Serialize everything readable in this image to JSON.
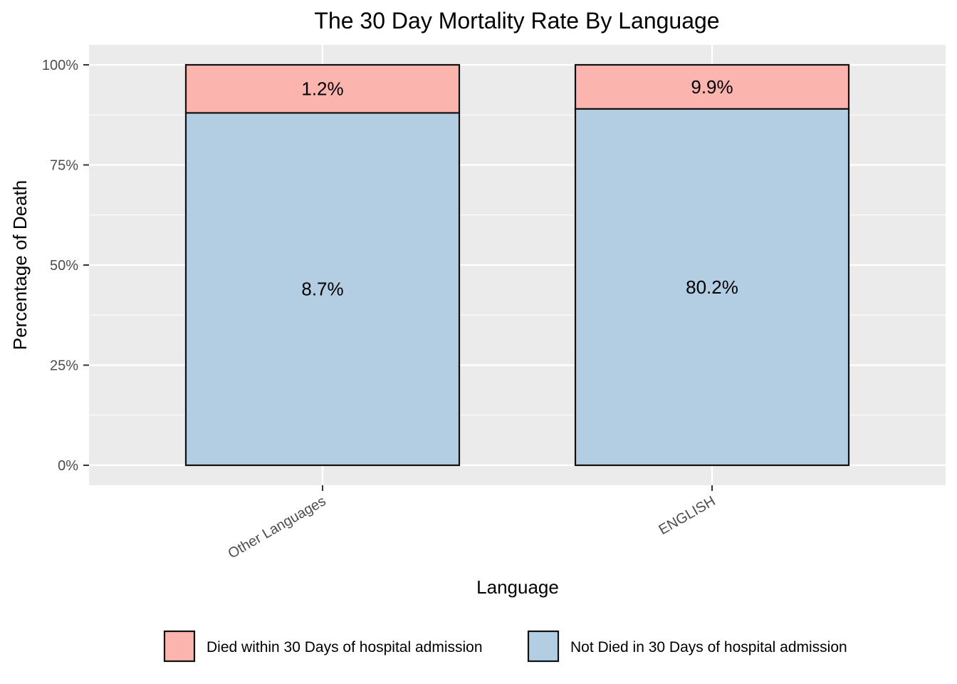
{
  "chart_data": {
    "type": "bar",
    "stacked": true,
    "title": "The 30 Day Mortality Rate By Language",
    "xlabel": "Language",
    "ylabel": "Percentage of Death",
    "categories": [
      "Other Languages",
      "ENGLISH"
    ],
    "y_ticks": [
      "0%",
      "25%",
      "50%",
      "75%",
      "100%"
    ],
    "ylim": [
      0,
      1
    ],
    "grid": true,
    "legend_position": "bottom",
    "series": [
      {
        "name": "Not Died in 30 Days of hospital admission",
        "color": "#B3CDE3",
        "values": [
          0.88,
          0.89
        ],
        "labels": [
          "8.7%",
          "80.2%"
        ]
      },
      {
        "name": "Died within 30 Days of hospital admission",
        "color": "#FBB4AE",
        "values": [
          0.12,
          0.11
        ],
        "labels": [
          "1.2%",
          "9.9%"
        ]
      }
    ],
    "legend_order": [
      1,
      0
    ]
  }
}
